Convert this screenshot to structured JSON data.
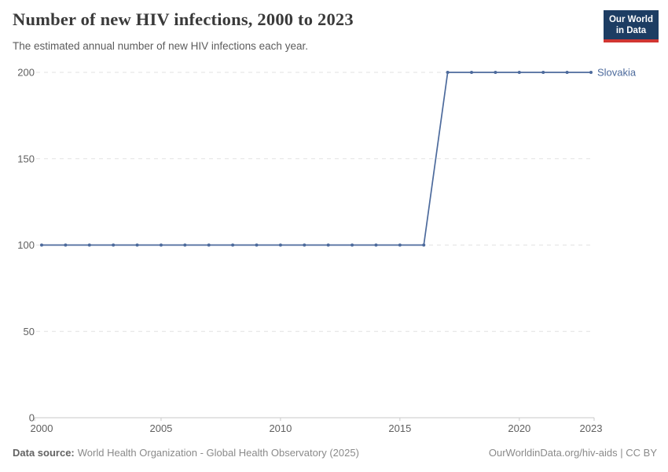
{
  "header": {
    "title": "Number of new HIV infections, 2000 to 2023",
    "subtitle": "The estimated annual number of new HIV infections each year.",
    "logo": {
      "line1": "Our World",
      "line2": "in Data"
    }
  },
  "chart_data": {
    "type": "line",
    "title": "Number of new HIV infections, 2000 to 2023",
    "subtitle": "The estimated annual number of new HIV infections each year.",
    "x": [
      2000,
      2001,
      2002,
      2003,
      2004,
      2005,
      2006,
      2007,
      2008,
      2009,
      2010,
      2011,
      2012,
      2013,
      2014,
      2015,
      2016,
      2017,
      2018,
      2019,
      2020,
      2021,
      2022,
      2023
    ],
    "series": [
      {
        "name": "Slovakia",
        "color": "#4C6A9C",
        "values": [
          100,
          100,
          100,
          100,
          100,
          100,
          100,
          100,
          100,
          100,
          100,
          100,
          100,
          100,
          100,
          100,
          100,
          200,
          200,
          200,
          200,
          200,
          200,
          200
        ]
      }
    ],
    "xlabel": "",
    "ylabel": "",
    "xlim": [
      2000,
      2023
    ],
    "ylim": [
      0,
      200
    ],
    "x_ticks": [
      2000,
      2005,
      2010,
      2015,
      2020,
      2023
    ],
    "y_ticks": [
      0,
      50,
      100,
      150,
      200
    ],
    "grid": "horizontal-dashed",
    "legend_position": "end-of-line-label",
    "marker": "dot"
  },
  "footer": {
    "datasource_label": "Data source:",
    "datasource_value": "World Health Organization - Global Health Observatory (2025)",
    "link": "OurWorldinData.org/hiv-aids | CC BY"
  },
  "colors": {
    "line": "#4C6A9C",
    "grid": "#e2e2e2",
    "axis": "#c9c9c9",
    "tick_text": "#606060",
    "logo_bg": "#1d3d63",
    "logo_red": "#d13632"
  }
}
